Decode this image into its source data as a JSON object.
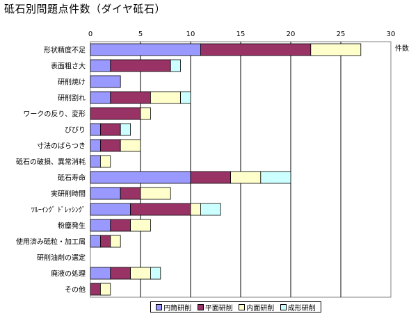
{
  "title": "砥石別問題点件数（ダイヤ砥石）",
  "unit_label": "件数",
  "chart_data": {
    "type": "bar",
    "orientation": "horizontal",
    "stacked": true,
    "categories": [
      "形状精度不足",
      "表面粗さ大",
      "研削焼け",
      "研削割れ",
      "ワークの反り、変形",
      "びびり",
      "寸法のばらつき",
      "砥石の破損、異常消耗",
      "砥石寿命",
      "実研削時間",
      "ﾂﾙｰｲﾝｸﾞ ﾄﾞﾚｯｼﾝｸﾞ",
      "粉塵発生",
      "使用済み砥粒・加工屑",
      "研削油剤の選定",
      "廃液の処理",
      "その他"
    ],
    "series": [
      {
        "name": "円筒研削",
        "color": "#9999ff",
        "values": [
          11,
          2,
          3,
          2,
          0,
          1,
          1,
          1,
          10,
          3,
          4,
          2,
          1,
          0,
          2,
          0
        ]
      },
      {
        "name": "平面研削",
        "color": "#993366",
        "values": [
          11,
          6,
          0,
          4,
          5,
          2,
          2,
          0,
          4,
          2,
          6,
          2,
          1,
          0,
          2,
          1
        ]
      },
      {
        "name": "内面研削",
        "color": "#ffffcc",
        "values": [
          5,
          0,
          0,
          3,
          1,
          0,
          2,
          1,
          3,
          3,
          1,
          2,
          1,
          0,
          2,
          1
        ]
      },
      {
        "name": "成形研削",
        "color": "#ccffff",
        "values": [
          0,
          1,
          0,
          1,
          0,
          1,
          0,
          0,
          3,
          0,
          2,
          0,
          0,
          0,
          1,
          0
        ]
      }
    ],
    "xlim": [
      0,
      30
    ],
    "xticks": [
      0,
      5,
      10,
      15,
      20,
      25,
      30
    ],
    "grid": true,
    "legend_position": "bottom"
  }
}
